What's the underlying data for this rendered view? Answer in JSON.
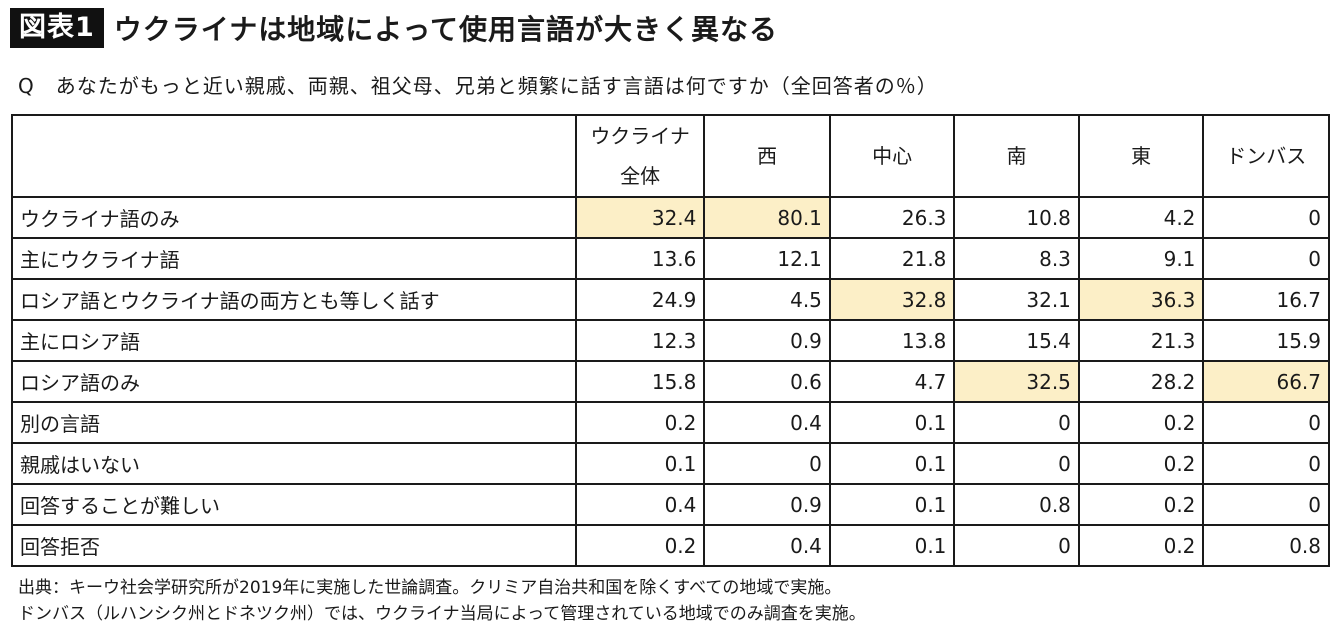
{
  "header": {
    "badge": "図表1",
    "title": "ウクライナは地域によって使用言語が大きく異なる"
  },
  "question": "Q　あなたがもっと近い親戚、両親、祖父母、兄弟と頻繁に話す言語は何ですか（全回答者の％）",
  "table": {
    "columns": [
      "ウクライナ全体",
      "西",
      "中心",
      "南",
      "東",
      "ドンバス"
    ],
    "rows": [
      {
        "label": "ウクライナ語のみ",
        "values": [
          "32.4",
          "80.1",
          "26.3",
          "10.8",
          "4.2",
          "0"
        ]
      },
      {
        "label": "主にウクライナ語",
        "values": [
          "13.6",
          "12.1",
          "21.8",
          "8.3",
          "9.1",
          "0"
        ]
      },
      {
        "label": "ロシア語とウクライナ語の両方とも等しく話す",
        "values": [
          "24.9",
          "4.5",
          "32.8",
          "32.1",
          "36.3",
          "16.7"
        ]
      },
      {
        "label": "主にロシア語",
        "values": [
          "12.3",
          "0.9",
          "13.8",
          "15.4",
          "21.3",
          "15.9"
        ]
      },
      {
        "label": "ロシア語のみ",
        "values": [
          "15.8",
          "0.6",
          "4.7",
          "32.5",
          "28.2",
          "66.7"
        ]
      },
      {
        "label": "別の言語",
        "values": [
          "0.2",
          "0.4",
          "0.1",
          "0",
          "0.2",
          "0"
        ]
      },
      {
        "label": "親戚はいない",
        "values": [
          "0.1",
          "0",
          "0.1",
          "0",
          "0.2",
          "0"
        ]
      },
      {
        "label": "回答することが難しい",
        "values": [
          "0.4",
          "0.9",
          "0.1",
          "0.8",
          "0.2",
          "0"
        ]
      },
      {
        "label": "回答拒否",
        "values": [
          "0.2",
          "0.4",
          "0.1",
          "0",
          "0.2",
          "0.8"
        ]
      }
    ],
    "highlight_color": "#fcefc7",
    "highlighted_cells": [
      [
        0,
        0
      ],
      [
        0,
        1
      ],
      [
        2,
        2
      ],
      [
        2,
        4
      ],
      [
        4,
        3
      ],
      [
        4,
        5
      ]
    ]
  },
  "chart_data": {
    "type": "table",
    "categories": [
      "ウクライナ語のみ",
      "主にウクライナ語",
      "ロシア語とウクライナ語の両方とも等しく話す",
      "主にロシア語",
      "ロシア語のみ",
      "別の言語",
      "親戚はいない",
      "回答することが難しい",
      "回答拒否"
    ],
    "series": [
      {
        "name": "ウクライナ全体",
        "values": [
          32.4,
          13.6,
          24.9,
          12.3,
          15.8,
          0.2,
          0.1,
          0.4,
          0.2
        ]
      },
      {
        "name": "西",
        "values": [
          80.1,
          12.1,
          4.5,
          0.9,
          0.6,
          0.4,
          0,
          0.9,
          0.4
        ]
      },
      {
        "name": "中心",
        "values": [
          26.3,
          21.8,
          32.8,
          13.8,
          4.7,
          0.1,
          0.1,
          0.1,
          0.1
        ]
      },
      {
        "name": "南",
        "values": [
          10.8,
          8.3,
          32.1,
          15.4,
          32.5,
          0,
          0,
          0.8,
          0
        ]
      },
      {
        "name": "東",
        "values": [
          4.2,
          9.1,
          36.3,
          21.3,
          28.2,
          0.2,
          0.2,
          0.2,
          0.2
        ]
      },
      {
        "name": "ドンバス",
        "values": [
          0,
          0,
          16.7,
          15.9,
          66.7,
          0,
          0,
          0,
          0.8
        ]
      }
    ]
  },
  "footnote": {
    "line1": "出典：キーウ社会学研究所が2019年に実施した世論調査。クリミア自治共和国を除くすべての地域で実施。",
    "line2": "ドンバス（ルハンシク州とドネツク州）では、ウクライナ当局によって管理されている地域でのみ調査を実施。"
  }
}
